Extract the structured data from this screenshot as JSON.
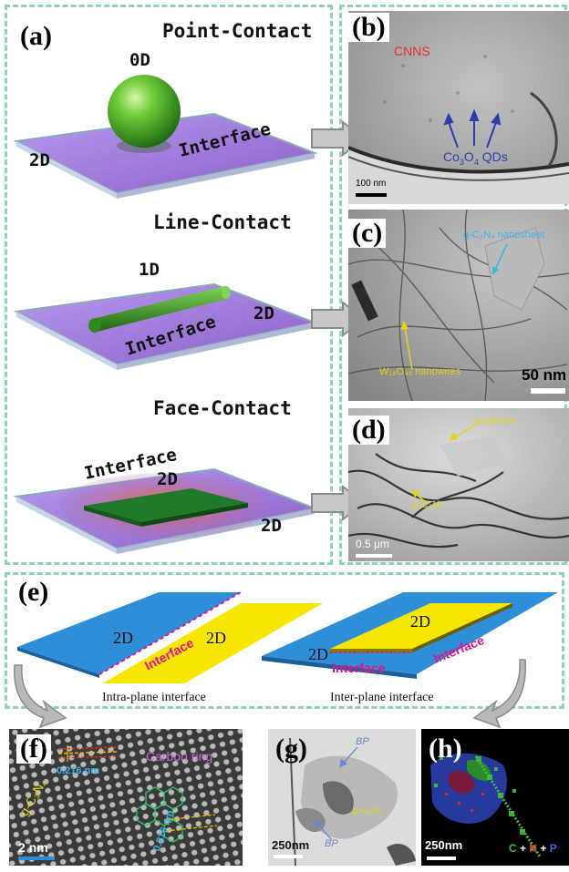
{
  "panels": {
    "a": {
      "label": "(a)",
      "point": {
        "title": "Point-Contact",
        "dim_top": "0D",
        "dim_base": "2D",
        "interface": "Interface"
      },
      "line": {
        "title": "Line-Contact",
        "dim_top": "1D",
        "dim_base": "2D",
        "interface": "Interface"
      },
      "face": {
        "title": "Face-Contact",
        "dim_top": "2D",
        "dim_base": "2D",
        "interface": "Interface"
      }
    },
    "b": {
      "label": "(b)",
      "material": "CNNS",
      "qd_label": "Co3O4 QDs",
      "qd_main": "Co",
      "qd_sub1": "3",
      "qd_mid": "O",
      "qd_sub2": "4",
      "qd_tail": " QDs",
      "scalebar": "100 nm"
    },
    "c": {
      "label": "(c)",
      "sheet_label": "g-C₃N₄ nanosheet",
      "wire_label": "W₁₈O₄₉ nanowires",
      "scalebar": "50 nm"
    },
    "d": {
      "label": "(d)",
      "graphene_label": "graphene",
      "gcn_label": "g-C₃N₄",
      "scalebar": "0.5 μm"
    },
    "e": {
      "label": "(e)",
      "intra": {
        "left": "2D",
        "right": "2D",
        "interface": "Interface",
        "caption": "Intra-plane interface"
      },
      "inter": {
        "top": "2D",
        "base": "2D",
        "interface_left": "Interface",
        "interface_right": "Interface",
        "caption": "Inter-plane interface"
      }
    },
    "f": {
      "label": "(f)",
      "spacing_top": "0.216 nm",
      "spacing_bottom": "0.216 nm",
      "ring_label": "Carbon ring",
      "material": "g-C₃N₄",
      "scalebar": "2 nm"
    },
    "g": {
      "label": "(g)",
      "bp_top": "BP",
      "bp_bottom": "BP",
      "material": "g-C₃N₄",
      "scalebar": "250nm"
    },
    "h": {
      "label": "(h)",
      "scalebar": "250nm",
      "legend_c": "C",
      "legend_plus1": " + ",
      "legend_n": "N",
      "legend_plus2": " + ",
      "legend_p": "P"
    }
  },
  "colors": {
    "frame_dash": "#8fd0c0",
    "plane_purple": "#9a6fd8",
    "sphere_green": "#3fa52a",
    "interface_pink": "#e0148c",
    "plane_blue": "#2e8fd8",
    "plane_yellow": "#f7e600",
    "label_red": "#e0302a",
    "label_blue": "#2b3fae",
    "label_yellow": "#e6d21a",
    "label_cyan": "#39b5e8",
    "label_purple": "#c86bd8"
  }
}
